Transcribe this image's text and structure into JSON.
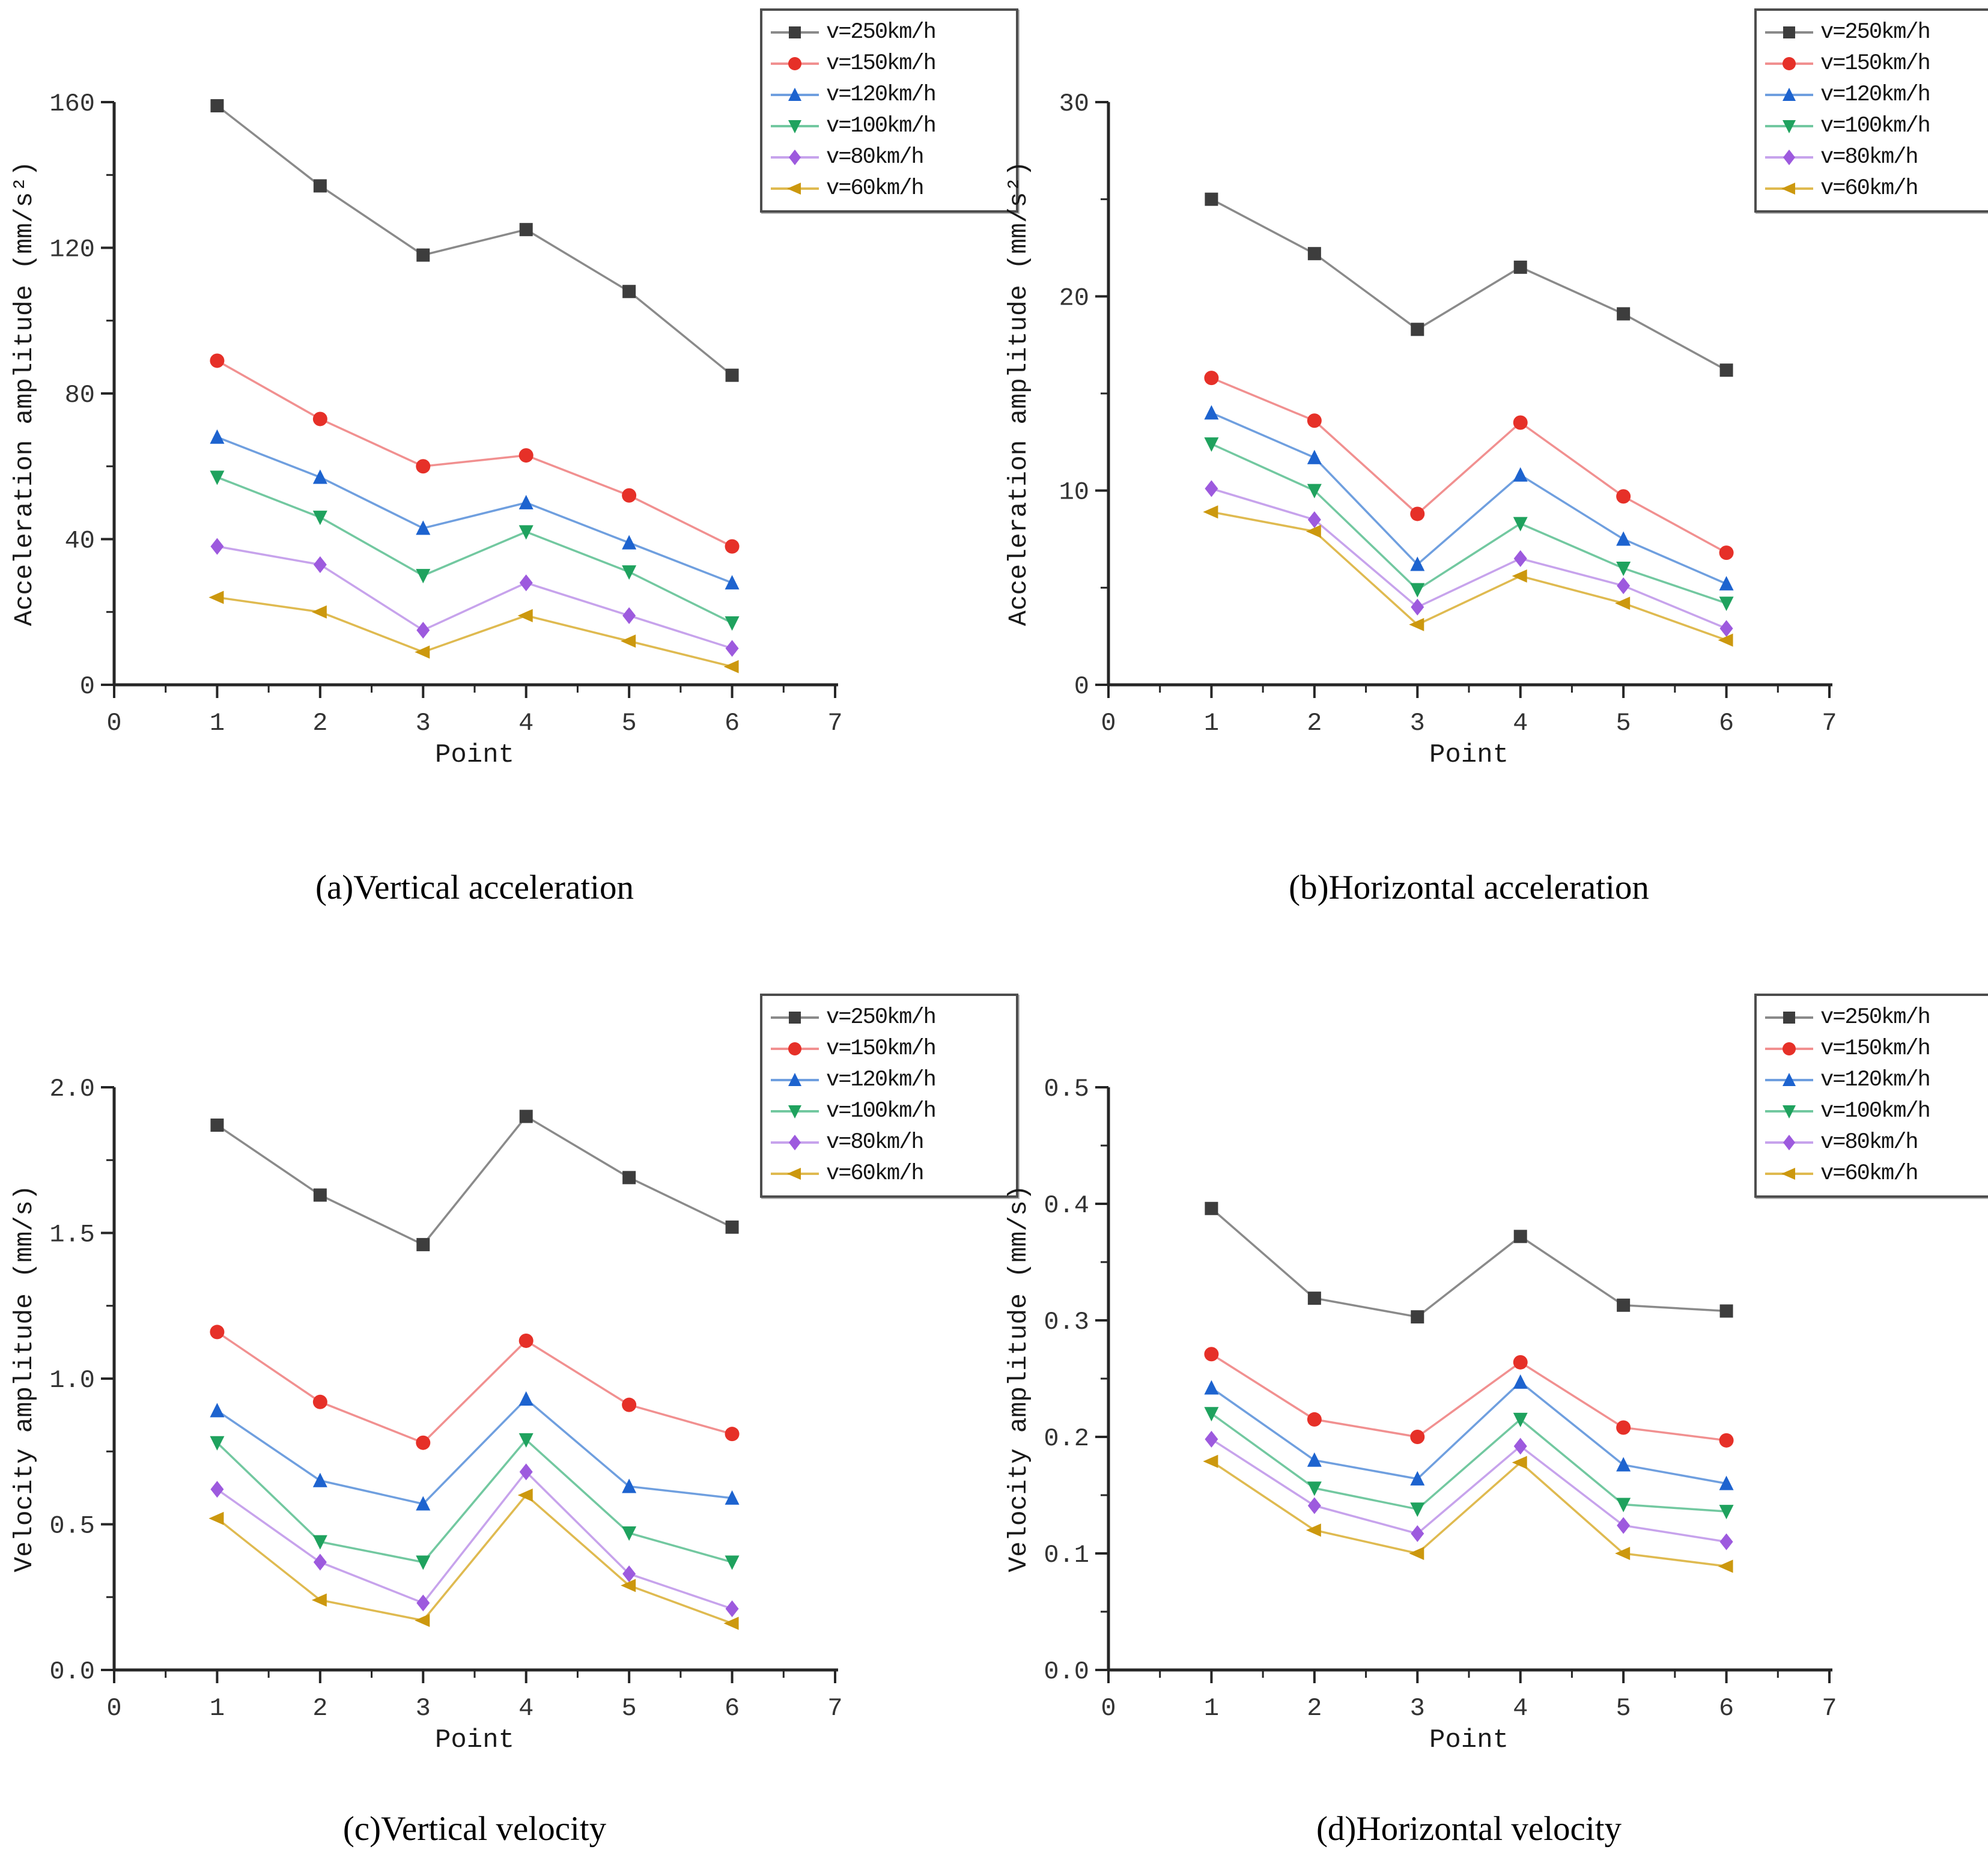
{
  "legend": {
    "entries": [
      {
        "label": "v=250km/h",
        "marker": "square",
        "marker_color": "#3d3d3d",
        "line_color": "#8a8a8a"
      },
      {
        "label": "v=150km/h",
        "marker": "circle",
        "marker_color": "#e63028",
        "line_color": "#f19090"
      },
      {
        "label": "v=120km/h",
        "marker": "triangle-up",
        "marker_color": "#1d63cf",
        "line_color": "#6f9fdf"
      },
      {
        "label": "v=100km/h",
        "marker": "triangle-down",
        "marker_color": "#1fa25e",
        "line_color": "#72c8a0"
      },
      {
        "label": "v=80km/h",
        "marker": "diamond",
        "marker_color": "#9d5ade",
        "line_color": "#c7a3ec"
      },
      {
        "label": "v=60km/h",
        "marker": "triangle-left",
        "marker_color": "#cc980e",
        "line_color": "#dfba50"
      }
    ],
    "position": "top-right"
  },
  "chart_data": [
    {
      "id": "a",
      "type": "line",
      "caption": "(a)Vertical acceleration",
      "xlabel": "Point",
      "ylabel": "Acceleration amplitude (mm/s²)",
      "x": [
        1,
        2,
        3,
        4,
        5,
        6
      ],
      "xlim": [
        0,
        7
      ],
      "xticks": [
        0,
        1,
        2,
        3,
        4,
        5,
        6,
        7
      ],
      "x_minor_step": 0.5,
      "ylim": [
        0,
        160
      ],
      "yticks": [
        0,
        40,
        80,
        120,
        160
      ],
      "ytick_labels": [
        "0",
        "40",
        "80",
        "120",
        "160"
      ],
      "y_minor_step": 20,
      "grid": false,
      "series": [
        {
          "name": "v=250km/h",
          "values": [
            159,
            137,
            118,
            125,
            108,
            85
          ]
        },
        {
          "name": "v=150km/h",
          "values": [
            89,
            73,
            60,
            63,
            52,
            38
          ]
        },
        {
          "name": "v=120km/h",
          "values": [
            68,
            57,
            43,
            50,
            39,
            28
          ]
        },
        {
          "name": "v=100km/h",
          "values": [
            57,
            46,
            30,
            42,
            31,
            17
          ]
        },
        {
          "name": "v=80km/h",
          "values": [
            38,
            33,
            15,
            28,
            19,
            10
          ]
        },
        {
          "name": "v=60km/h",
          "values": [
            24,
            20,
            9,
            19,
            12,
            5
          ]
        }
      ]
    },
    {
      "id": "b",
      "type": "line",
      "caption": "(b)Horizontal acceleration",
      "xlabel": "Point",
      "ylabel": "Acceleration amplitude (mm/s²)",
      "x": [
        1,
        2,
        3,
        4,
        5,
        6
      ],
      "xlim": [
        0,
        7
      ],
      "xticks": [
        0,
        1,
        2,
        3,
        4,
        5,
        6,
        7
      ],
      "x_minor_step": 0.5,
      "ylim": [
        0,
        30
      ],
      "yticks": [
        0,
        10,
        20,
        30
      ],
      "ytick_labels": [
        "0",
        "10",
        "20",
        "30"
      ],
      "y_minor_step": 5,
      "grid": false,
      "series": [
        {
          "name": "v=250km/h",
          "values": [
            25.0,
            22.2,
            18.3,
            21.5,
            19.1,
            16.2
          ]
        },
        {
          "name": "v=150km/h",
          "values": [
            15.8,
            13.6,
            8.8,
            13.5,
            9.7,
            6.8
          ]
        },
        {
          "name": "v=120km/h",
          "values": [
            14.0,
            11.7,
            6.2,
            10.8,
            7.5,
            5.2
          ]
        },
        {
          "name": "v=100km/h",
          "values": [
            12.4,
            10.0,
            4.9,
            8.3,
            6.0,
            4.2
          ]
        },
        {
          "name": "v=80km/h",
          "values": [
            10.1,
            8.5,
            4.0,
            6.5,
            5.1,
            2.9
          ]
        },
        {
          "name": "v=60km/h",
          "values": [
            8.9,
            7.9,
            3.1,
            5.6,
            4.2,
            2.3
          ]
        }
      ]
    },
    {
      "id": "c",
      "type": "line",
      "caption": "(c)Vertical velocity",
      "xlabel": "Point",
      "ylabel": "Velocity amplitude (mm/s)",
      "x": [
        1,
        2,
        3,
        4,
        5,
        6
      ],
      "xlim": [
        0,
        7
      ],
      "xticks": [
        0,
        1,
        2,
        3,
        4,
        5,
        6,
        7
      ],
      "x_minor_step": 0.5,
      "ylim": [
        0,
        2.0
      ],
      "yticks": [
        0,
        0.5,
        1.0,
        1.5,
        2.0
      ],
      "ytick_labels": [
        "0.0",
        "0.5",
        "1.0",
        "1.5",
        "2.0"
      ],
      "y_minor_step": 0.25,
      "grid": false,
      "series": [
        {
          "name": "v=250km/h",
          "values": [
            1.87,
            1.63,
            1.46,
            1.9,
            1.69,
            1.52
          ]
        },
        {
          "name": "v=150km/h",
          "values": [
            1.16,
            0.92,
            0.78,
            1.13,
            0.91,
            0.81
          ]
        },
        {
          "name": "v=120km/h",
          "values": [
            0.89,
            0.65,
            0.57,
            0.93,
            0.63,
            0.59
          ]
        },
        {
          "name": "v=100km/h",
          "values": [
            0.78,
            0.44,
            0.37,
            0.79,
            0.47,
            0.37
          ]
        },
        {
          "name": "v=80km/h",
          "values": [
            0.62,
            0.37,
            0.23,
            0.68,
            0.33,
            0.21
          ]
        },
        {
          "name": "v=60km/h",
          "values": [
            0.52,
            0.24,
            0.17,
            0.6,
            0.29,
            0.16
          ]
        }
      ]
    },
    {
      "id": "d",
      "type": "line",
      "caption": "(d)Horizontal velocity",
      "xlabel": "Point",
      "ylabel": "Velocity amplitude (mm/s)",
      "x": [
        1,
        2,
        3,
        4,
        5,
        6
      ],
      "xlim": [
        0,
        7
      ],
      "xticks": [
        0,
        1,
        2,
        3,
        4,
        5,
        6,
        7
      ],
      "x_minor_step": 0.5,
      "ylim": [
        0,
        0.5
      ],
      "yticks": [
        0,
        0.1,
        0.2,
        0.3,
        0.4,
        0.5
      ],
      "ytick_labels": [
        "0.0",
        "0.1",
        "0.2",
        "0.3",
        "0.4",
        "0.5"
      ],
      "y_minor_step": 0.05,
      "grid": false,
      "series": [
        {
          "name": "v=250km/h",
          "values": [
            0.396,
            0.319,
            0.303,
            0.372,
            0.313,
            0.308
          ]
        },
        {
          "name": "v=150km/h",
          "values": [
            0.271,
            0.215,
            0.2,
            0.264,
            0.208,
            0.197
          ]
        },
        {
          "name": "v=120km/h",
          "values": [
            0.242,
            0.18,
            0.164,
            0.247,
            0.176,
            0.16
          ]
        },
        {
          "name": "v=100km/h",
          "values": [
            0.22,
            0.156,
            0.138,
            0.215,
            0.142,
            0.136
          ]
        },
        {
          "name": "v=80km/h",
          "values": [
            0.198,
            0.141,
            0.117,
            0.192,
            0.124,
            0.11
          ]
        },
        {
          "name": "v=60km/h",
          "values": [
            0.179,
            0.12,
            0.1,
            0.178,
            0.1,
            0.089
          ]
        }
      ]
    }
  ],
  "style": {
    "axis_color": "#262626",
    "tick_label_color": "#333333",
    "background": "#ffffff"
  }
}
